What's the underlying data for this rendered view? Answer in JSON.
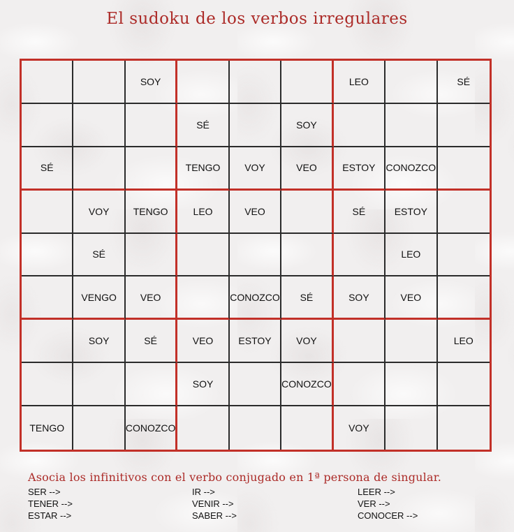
{
  "title": "El sudoku de los verbos irregulares",
  "colors": {
    "background": "#f1efef",
    "grid_red": "#c23028",
    "title_red": "#ac2b28",
    "line_black": "#2b2b2b",
    "text_black": "#111111"
  },
  "grid": {
    "rows": [
      [
        "",
        "",
        "SOY",
        "",
        "",
        "",
        "LEO",
        "",
        "SÉ"
      ],
      [
        "",
        "",
        "",
        "SÉ",
        "",
        "SOY",
        "",
        "",
        ""
      ],
      [
        "SÉ",
        "",
        "",
        "TENGO",
        "VOY",
        "VEO",
        "ESTOY",
        "CONOZCO",
        ""
      ],
      [
        "",
        "VOY",
        "TENGO",
        "LEO",
        "VEO",
        "",
        "SÉ",
        "ESTOY",
        ""
      ],
      [
        "",
        "SÉ",
        "",
        "",
        "",
        "",
        "",
        "LEO",
        ""
      ],
      [
        "",
        "VENGO",
        "VEO",
        "",
        "CONOZCO",
        "SÉ",
        "SOY",
        "VEO",
        ""
      ],
      [
        "",
        "SOY",
        "SÉ",
        "VEO",
        "ESTOY",
        "VOY",
        "",
        "",
        "LEO"
      ],
      [
        "",
        "",
        "",
        "SOY",
        "",
        "CONOZCO",
        "",
        "",
        ""
      ],
      [
        "TENGO",
        "",
        "CONOZCO",
        "",
        "",
        "",
        "VOY",
        "",
        ""
      ]
    ]
  },
  "exercise": {
    "instruction": "Asocia los infinitivos con el verbo conjugado en 1ª persona de singular.",
    "columns": [
      [
        "SER -->",
        "TENER -->",
        "ESTAR -->"
      ],
      [
        "IR -->",
        "VENIR -->",
        "SABER -->"
      ],
      [
        "LEER -->",
        "VER -->",
        "CONOCER -->"
      ]
    ]
  }
}
